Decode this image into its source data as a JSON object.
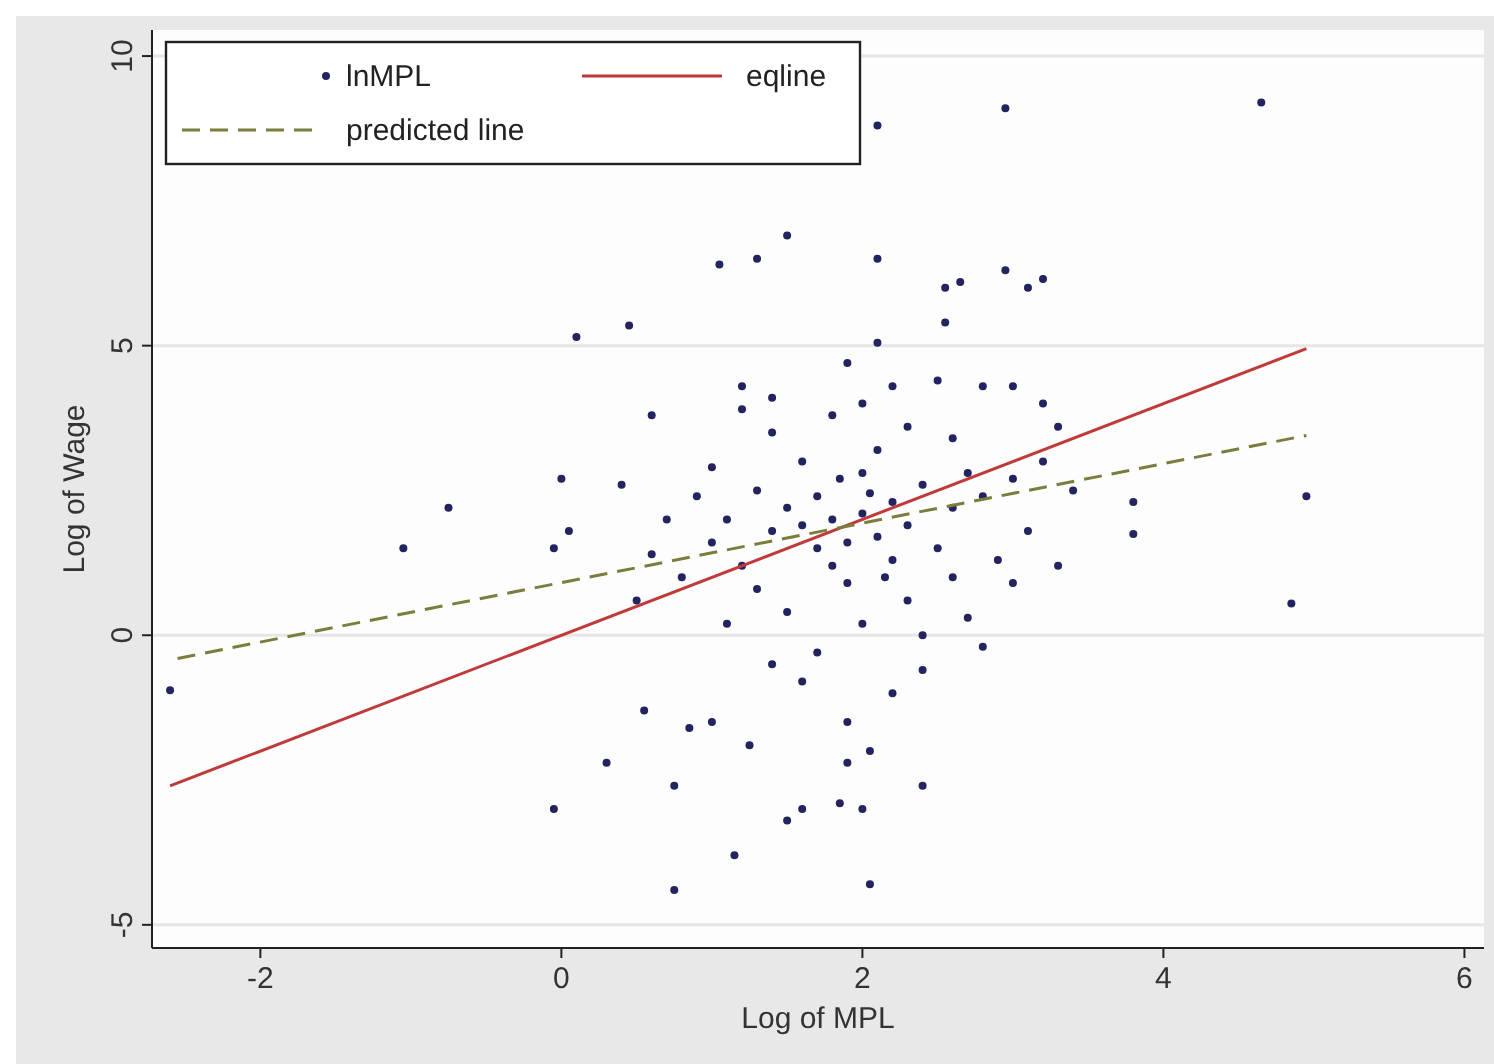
{
  "chart_data": {
    "type": "scatter",
    "xlabel": "Log of MPL",
    "ylabel": "Log of Wage",
    "xlim": [
      -2.72,
      6.13
    ],
    "ylim": [
      -5.4,
      10.45
    ],
    "xticks": [
      -2,
      0,
      2,
      4,
      6
    ],
    "yticks": [
      -5,
      0,
      5,
      10
    ],
    "grid": "y",
    "legend": "top left",
    "series": [
      {
        "name": "lnMPL",
        "color": "#23235f",
        "marker": "circle",
        "x": [
          1.8,
          2.0,
          1.6,
          2.2,
          1.9,
          2.1,
          1.7,
          2.3,
          1.5,
          2.4,
          1.4,
          2.0,
          1.8,
          2.2,
          1.3,
          2.6,
          1.1,
          2.7,
          1.0,
          2.5,
          1.6,
          2.1,
          1.9,
          2.3,
          1.2,
          2.8,
          0.9,
          3.0,
          1.5,
          2.0,
          1.7,
          2.4,
          1.3,
          2.6,
          0.8,
          3.1,
          1.4,
          2.3,
          1.8,
          2.6,
          0.7,
          3.2,
          1.0,
          2.9,
          0.6,
          3.4,
          1.1,
          2.7,
          1.6,
          2.2,
          1.9,
          2.4,
          1.4,
          0.5,
          2.8,
          3.0,
          0.4,
          3.3,
          1.2,
          2.0,
          1.7,
          2.05,
          1.85,
          2.15,
          4.65,
          2.95,
          2.1,
          1.5,
          1.05,
          1.3,
          2.1,
          2.95,
          2.55,
          2.65,
          3.1,
          3.2,
          2.55,
          2.1,
          0.1,
          0.45,
          -2.6,
          -1.05,
          -0.75,
          0.0,
          -0.05,
          0.05,
          4.85,
          4.95,
          3.8,
          3.8,
          0.75,
          2.05,
          1.15,
          -0.05,
          1.5,
          1.6,
          1.85,
          2.0,
          0.75,
          2.4,
          0.3,
          1.9,
          2.05,
          1.25,
          0.55,
          0.85,
          1.0,
          1.4,
          2.2,
          2.5,
          2.8,
          3.0,
          1.2,
          0.6,
          1.9,
          3.2,
          3.3
        ],
        "values": [
          2.0,
          2.1,
          1.9,
          2.3,
          1.6,
          1.7,
          2.4,
          1.9,
          2.2,
          2.6,
          1.8,
          2.8,
          1.2,
          1.3,
          2.5,
          2.2,
          2.0,
          2.8,
          1.6,
          1.5,
          3.0,
          3.2,
          0.9,
          0.6,
          1.2,
          2.4,
          2.4,
          2.7,
          0.4,
          0.2,
          -0.3,
          0.0,
          0.8,
          1.0,
          1.0,
          1.8,
          3.5,
          3.6,
          3.8,
          3.4,
          2.0,
          3.0,
          2.9,
          1.3,
          1.4,
          2.5,
          0.2,
          0.3,
          -0.8,
          -1.0,
          -1.5,
          -0.6,
          -0.5,
          0.6,
          -0.2,
          0.9,
          2.6,
          1.2,
          3.9,
          4.0,
          1.5,
          2.45,
          2.7,
          1.0,
          9.2,
          9.1,
          8.8,
          6.9,
          6.4,
          6.5,
          6.5,
          6.3,
          6.0,
          6.1,
          6.0,
          6.15,
          5.4,
          5.05,
          5.15,
          5.35,
          -0.95,
          1.5,
          2.2,
          2.7,
          1.5,
          1.8,
          0.55,
          2.4,
          1.75,
          2.3,
          -4.4,
          -4.3,
          -3.8,
          -3.0,
          -3.2,
          -3.0,
          -2.9,
          -3.0,
          -2.6,
          -2.6,
          -2.2,
          -2.2,
          -2.0,
          -1.9,
          -1.3,
          -1.6,
          -1.5,
          4.1,
          4.3,
          4.4,
          4.3,
          4.3,
          4.3,
          3.8,
          4.7,
          4.0,
          3.6
        ]
      },
      {
        "name": "eqline",
        "type": "line",
        "color": "#c03a3a",
        "line_style": "solid",
        "x": [
          -2.6,
          4.95
        ],
        "values": [
          -2.6,
          4.95
        ]
      },
      {
        "name": "predicted line",
        "type": "line",
        "color": "#7c7c3c",
        "line_style": "dashed",
        "x": [
          -2.55,
          4.95
        ],
        "values": [
          -0.4,
          3.45
        ]
      }
    ]
  }
}
